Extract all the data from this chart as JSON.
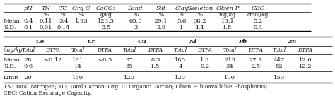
{
  "top_header": [
    "pH",
    "TN",
    "TC",
    "Org C",
    "CaCO₃",
    "Sand",
    "Silt",
    "Clay",
    "Skeleton",
    "Olsen P",
    "CEC"
  ],
  "top_units": [
    " ",
    "%",
    "%",
    "%",
    "g/kg",
    "%",
    "%",
    "%",
    "%",
    "mg/kg",
    "cmol/kg"
  ],
  "top_mean": [
    "8.4",
    "0.11",
    "3.4",
    "1.93",
    "123.5",
    "65.3",
    "29.1",
    "5.6",
    "38.2",
    "13.1",
    "5.2"
  ],
  "top_sd": [
    "0.1",
    "0.01",
    "0.14",
    "",
    "3.5",
    "3",
    "2.9",
    "1",
    "4.4",
    "1.8",
    "0.4"
  ],
  "bot_main_headers": [
    "Co",
    "Cr",
    "Cu",
    "Ni",
    "Pb",
    "Zn"
  ],
  "bot_sub_unit": "(mg/kg)",
  "bot_sub": [
    "Total",
    "DTPA",
    "Total",
    "DTPA",
    "Total",
    "DTPA",
    "Total",
    "DTPA",
    "Total",
    "DTPA",
    "Total",
    "DTPA"
  ],
  "bot_mean": [
    "28",
    "<0.12",
    "191",
    "<0.5",
    "97",
    "8.3",
    "185",
    "1.3",
    "215",
    "27.7",
    "447",
    "12.6"
  ],
  "bot_sd": [
    "0.6",
    "",
    "14",
    "",
    "35",
    "1.5",
    "4",
    "0.2",
    "34",
    "2.5",
    "82",
    "12.2"
  ],
  "bot_limit": [
    "20",
    "",
    "150",
    "",
    "120",
    "",
    "120",
    "",
    "100",
    "",
    "150",
    ""
  ],
  "footnote_line1": "TN: Total Nitrogen; TC: Total Carbon; Org. C: Organic Carbon; Olsen P: bioavailable Phosphorus;",
  "footnote_line2": "CEC: Cation Exchange Capacity.",
  "bg_color": "#ffffff",
  "text_color": "#1a1a1a",
  "font_size": 6.0
}
